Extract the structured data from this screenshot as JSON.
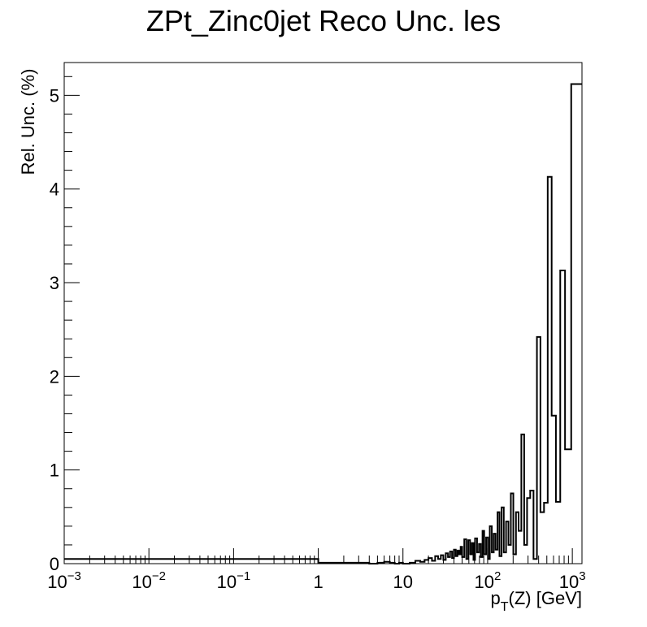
{
  "chart_data": {
    "type": "line",
    "style": "step-histogram",
    "title": "ZPt_Zinc0jet Reco Unc. les",
    "xlabel": {
      "main": "p",
      "sub": "T",
      "rest": "(Z) [GeV]"
    },
    "ylabel": "Rel. Unc. (%)",
    "xscale": "log",
    "xlim": [
      0.001,
      1300
    ],
    "ylim": [
      0,
      5.35
    ],
    "grid": false,
    "line_color": "#000000",
    "yticks": [
      {
        "value": 0,
        "label": "0"
      },
      {
        "value": 1,
        "label": "1"
      },
      {
        "value": 2,
        "label": "2"
      },
      {
        "value": 3,
        "label": "3"
      },
      {
        "value": 4,
        "label": "4"
      },
      {
        "value": 5,
        "label": "5"
      }
    ],
    "xticks": [
      {
        "value": 0.001,
        "base": "10",
        "exp": "−3"
      },
      {
        "value": 0.01,
        "base": "10",
        "exp": "−2"
      },
      {
        "value": 0.1,
        "base": "10",
        "exp": "−1"
      },
      {
        "value": 1,
        "base": "1",
        "exp": ""
      },
      {
        "value": 10,
        "base": "10",
        "exp": ""
      },
      {
        "value": 100,
        "base": "10",
        "exp": "2"
      },
      {
        "value": 1000,
        "base": "10",
        "exp": "3"
      }
    ],
    "bin_edges": [
      0.001,
      1,
      2,
      3,
      4,
      5,
      6,
      7,
      8,
      9,
      10,
      12,
      14,
      16,
      18,
      20,
      22,
      24,
      26,
      28,
      30,
      32,
      34,
      36,
      38,
      40,
      42,
      44,
      46,
      48,
      50,
      53,
      56,
      59,
      62,
      65,
      68,
      71,
      75,
      79,
      83,
      87,
      91,
      96,
      101,
      106,
      112,
      118,
      124,
      131,
      138,
      146,
      155,
      165,
      176,
      188,
      201,
      216,
      232,
      250,
      270,
      292,
      318,
      348,
      382,
      420,
      463,
      512,
      570,
      640,
      720,
      820,
      970,
      1300
    ],
    "values": [
      0.05,
      0.01,
      0.01,
      0.01,
      0.0,
      0.01,
      0.02,
      0.01,
      0.0,
      0.01,
      0.0,
      0.01,
      0.03,
      0.02,
      0.04,
      0.06,
      0.03,
      0.08,
      0.05,
      0.09,
      0.04,
      0.11,
      0.07,
      0.13,
      0.06,
      0.15,
      0.08,
      0.14,
      0.1,
      0.18,
      0.07,
      0.26,
      0.05,
      0.25,
      0.1,
      0.22,
      0.04,
      0.27,
      0.12,
      0.21,
      0.07,
      0.35,
      0.1,
      0.28,
      0.05,
      0.4,
      0.12,
      0.32,
      0.15,
      0.55,
      0.08,
      0.6,
      0.12,
      0.45,
      0.2,
      0.75,
      0.1,
      0.55,
      0.35,
      1.38,
      0.2,
      0.7,
      0.78,
      0.05,
      2.42,
      0.55,
      0.65,
      4.13,
      1.58,
      0.66,
      3.13,
      1.22,
      5.12
    ]
  }
}
